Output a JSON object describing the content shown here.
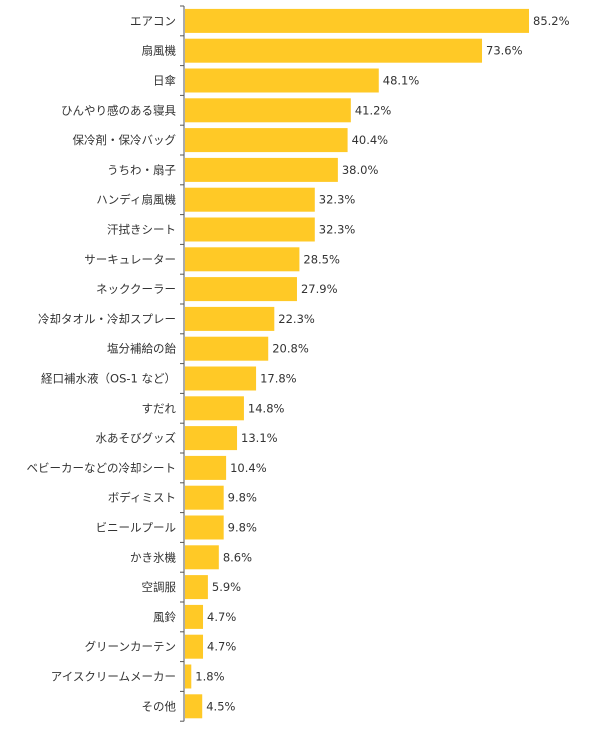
{
  "chart_data": {
    "type": "bar",
    "orientation": "horizontal",
    "categories": [
      "エアコン",
      "扇風機",
      "日傘",
      "ひんやり感のある寝具",
      "保冷剤・保冷バッグ",
      "うちわ・扇子",
      "ハンディ扇風機",
      "汗拭きシート",
      "サーキュレーター",
      "ネッククーラー",
      "冷却タオル・冷却スプレー",
      "塩分補給の飴",
      "経口補水液（OS-1 など）",
      "すだれ",
      "水あそびグッズ",
      "ベビーカーなどの冷却シート",
      "ボディミスト",
      "ビニールプール",
      "かき氷機",
      "空調服",
      "風鈴",
      "グリーンカーテン",
      "アイスクリームメーカー",
      "その他"
    ],
    "values": [
      85.2,
      73.6,
      48.1,
      41.2,
      40.4,
      38.0,
      32.3,
      32.3,
      28.5,
      27.9,
      22.3,
      20.8,
      17.8,
      14.8,
      13.1,
      10.4,
      9.8,
      9.8,
      8.6,
      5.9,
      4.7,
      4.7,
      1.8,
      4.5
    ],
    "value_labels": [
      "85.2%",
      "73.6%",
      "48.1%",
      "41.2%",
      "40.4%",
      "38.0%",
      "32.3%",
      "32.3%",
      "28.5%",
      "27.9%",
      "22.3%",
      "20.8%",
      "17.8%",
      "14.8%",
      "13.1%",
      "10.4%",
      "9.8%",
      "9.8%",
      "8.6%",
      "5.9%",
      "4.7%",
      "4.7%",
      "1.8%",
      "4.5%"
    ],
    "title": "",
    "xlabel": "",
    "ylabel": "",
    "xlim": [
      0,
      100
    ],
    "grid": false,
    "legend": "none",
    "bar_color": "#FFC926"
  }
}
